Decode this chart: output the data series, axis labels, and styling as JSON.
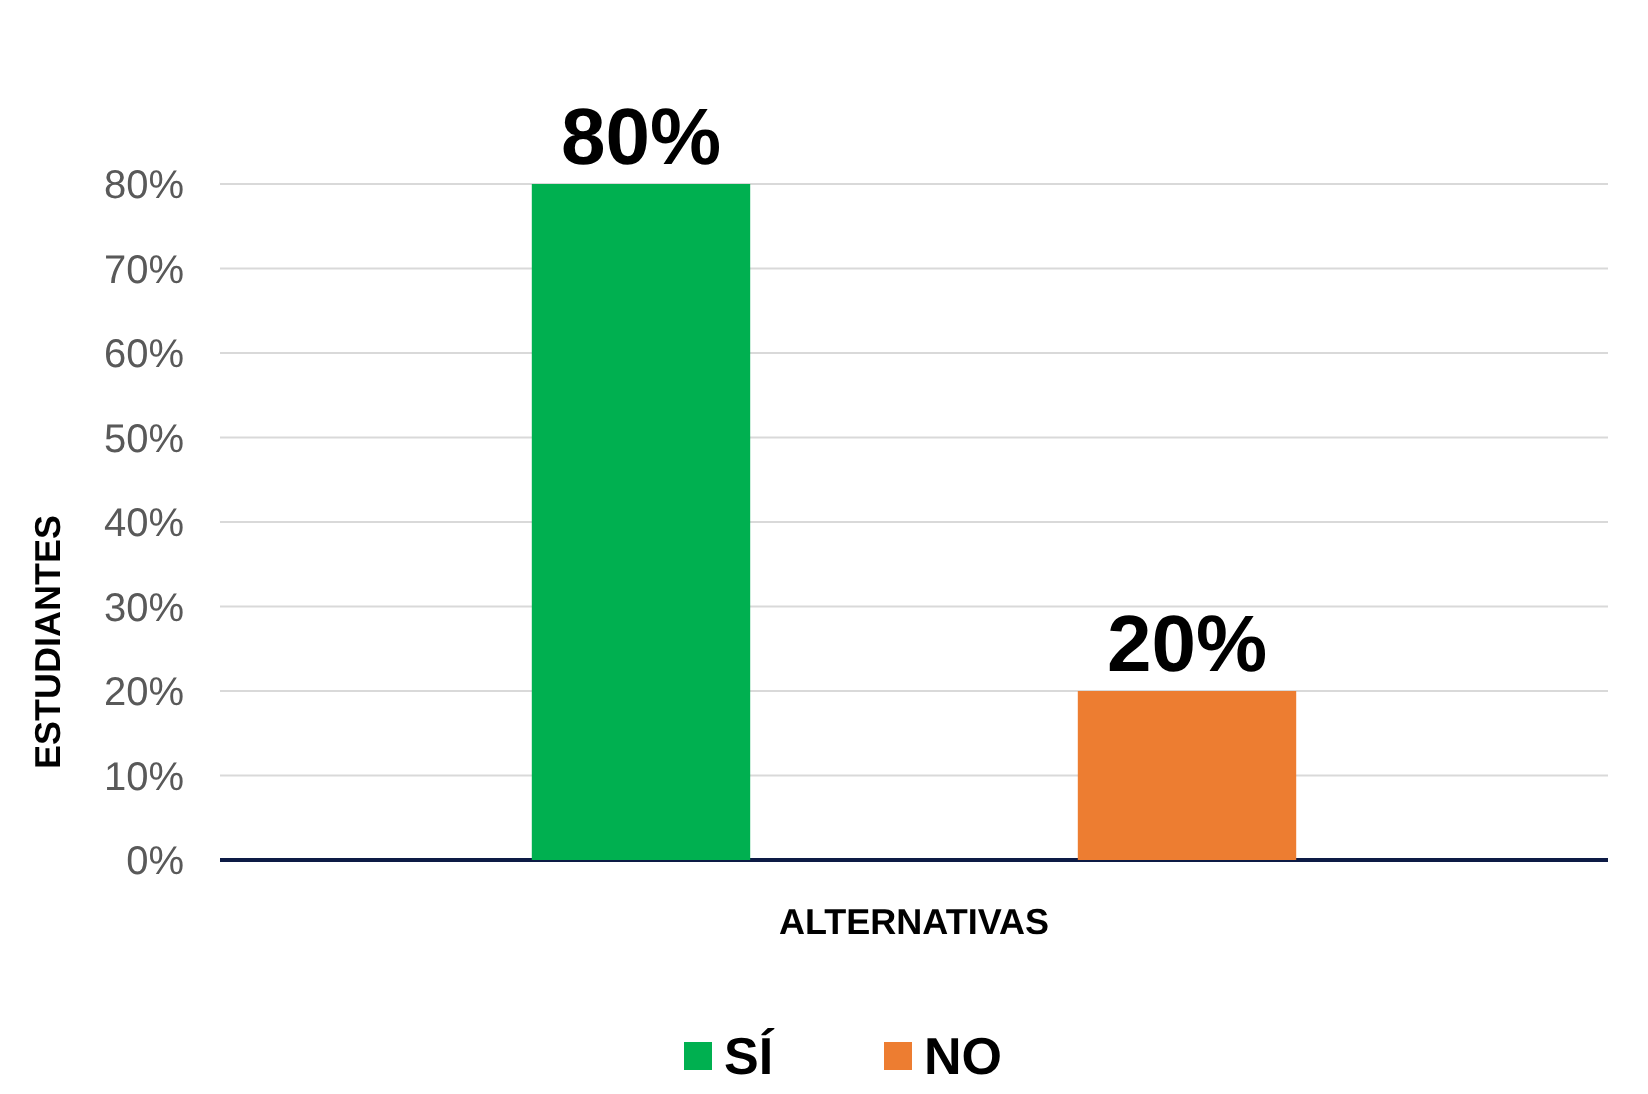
{
  "chart_data": {
    "type": "bar",
    "xlabel": "ALTERNATIVAS",
    "ylabel": "ESTUDIANTES",
    "categories": [
      null
    ],
    "series": [
      {
        "name": "SÍ",
        "color": "#00b050",
        "values": [
          80
        ],
        "value_labels": [
          "80%"
        ]
      },
      {
        "name": "NO",
        "color": "#ed7d31",
        "values": [
          20
        ],
        "value_labels": [
          "20%"
        ]
      }
    ],
    "ylim": [
      0,
      80
    ],
    "yticks": [
      {
        "value": 0,
        "label": "0%"
      },
      {
        "value": 10,
        "label": "10%"
      },
      {
        "value": 20,
        "label": "20%"
      },
      {
        "value": 30,
        "label": "30%"
      },
      {
        "value": 40,
        "label": "40%"
      },
      {
        "value": 50,
        "label": "50%"
      },
      {
        "value": 60,
        "label": "60%"
      },
      {
        "value": 70,
        "label": "70%"
      },
      {
        "value": 80,
        "label": "80%"
      }
    ],
    "grid": "y",
    "legend": "bottom"
  }
}
